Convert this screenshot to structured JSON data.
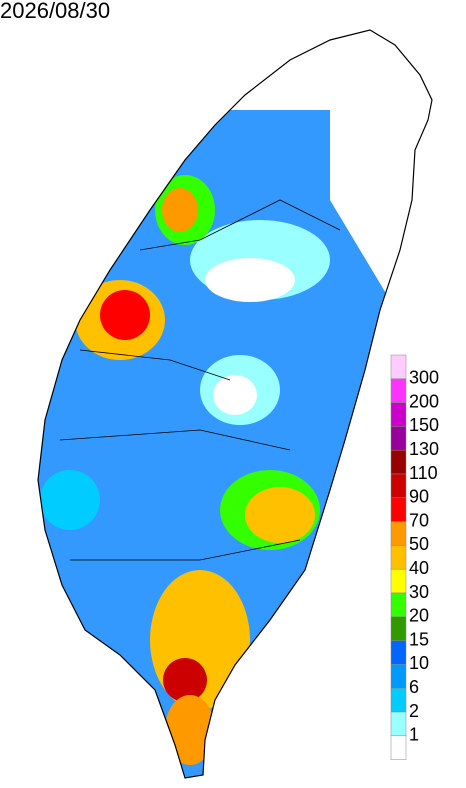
{
  "date": "2026/08/30",
  "legend": {
    "colors": [
      "#ffccff",
      "#ff33ff",
      "#cc00cc",
      "#990099",
      "#990000",
      "#cc0000",
      "#ff0000",
      "#ff9900",
      "#ffc000",
      "#ffff00",
      "#33ff00",
      "#339900",
      "#0066ff",
      "#0099ff",
      "#00ccff",
      "#99ffff",
      "#ffffff"
    ],
    "labels": [
      "300",
      "200",
      "150",
      "130",
      "110",
      "90",
      "70",
      "50",
      "40",
      "30",
      "20",
      "15",
      "10",
      "6",
      "2",
      "1"
    ]
  }
}
